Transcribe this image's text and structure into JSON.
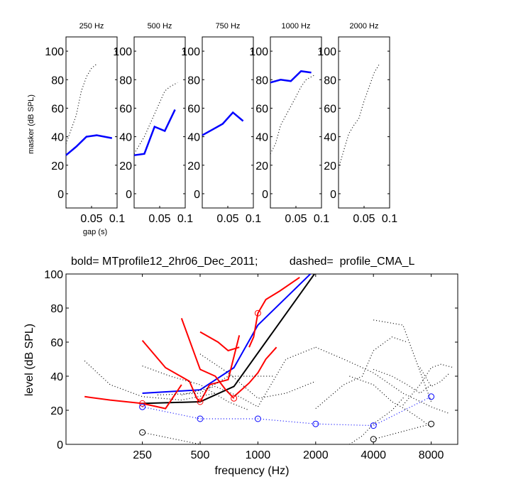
{
  "small_panels": {
    "ylabel": "masker (dB SPL)",
    "xlabel": "gap (s)",
    "xlim": [
      0,
      0.1
    ],
    "ylim": [
      -10,
      110
    ],
    "xticks": [
      "0.05",
      "0.1"
    ],
    "yticks": [
      "0",
      "20",
      "40",
      "60",
      "80",
      "100"
    ]
  },
  "bottom_title": "bold= MTprofile12_2hr06_Dec_2011;          dashed=  profile_CMA_L",
  "chart_data": [
    {
      "type": "line",
      "title": "250 Hz",
      "xlim": [
        0,
        0.1
      ],
      "ylim": [
        -10,
        110
      ],
      "series": [
        {
          "style": "bold",
          "color": "#0000ff",
          "x": [
            0.0,
            0.02,
            0.04,
            0.06,
            0.09
          ],
          "y": [
            27,
            33,
            40,
            41,
            39
          ]
        },
        {
          "style": "dotted",
          "color": "#000000",
          "x": [
            0.0,
            0.01,
            0.02,
            0.03,
            0.04,
            0.05,
            0.06
          ],
          "y": [
            35,
            45,
            55,
            72,
            82,
            88,
            91
          ]
        }
      ]
    },
    {
      "type": "line",
      "title": "500 Hz",
      "xlim": [
        0,
        0.1
      ],
      "ylim": [
        -10,
        110
      ],
      "series": [
        {
          "style": "bold",
          "color": "#0000ff",
          "x": [
            0.0,
            0.02,
            0.04,
            0.06,
            0.08
          ],
          "y": [
            27,
            28,
            47,
            44,
            59
          ]
        },
        {
          "style": "dotted",
          "color": "#000000",
          "x": [
            0.0,
            0.02,
            0.03,
            0.045,
            0.06,
            0.07,
            0.085
          ],
          "y": [
            28,
            40,
            48,
            60,
            72,
            75,
            78
          ]
        }
      ]
    },
    {
      "type": "line",
      "title": "750 Hz",
      "xlim": [
        0,
        0.1
      ],
      "ylim": [
        -10,
        110
      ],
      "series": [
        {
          "style": "bold",
          "color": "#0000ff",
          "x": [
            0.0,
            0.02,
            0.04,
            0.06,
            0.08
          ],
          "y": [
            41,
            45,
            49,
            57,
            51
          ]
        }
      ]
    },
    {
      "type": "line",
      "title": "1000 Hz",
      "xlim": [
        0,
        0.1
      ],
      "ylim": [
        -10,
        110
      ],
      "series": [
        {
          "style": "bold",
          "color": "#0000ff",
          "x": [
            0.0,
            0.02,
            0.04,
            0.06,
            0.08
          ],
          "y": [
            78,
            80,
            79,
            86,
            85
          ]
        },
        {
          "style": "dotted",
          "color": "#000000",
          "x": [
            0.0,
            0.01,
            0.02,
            0.035,
            0.05,
            0.06,
            0.07,
            0.085
          ],
          "y": [
            28,
            35,
            48,
            58,
            68,
            75,
            80,
            83
          ]
        }
      ]
    },
    {
      "type": "line",
      "title": "2000 Hz",
      "xlim": [
        0,
        0.1
      ],
      "ylim": [
        -10,
        110
      ],
      "series": [
        {
          "style": "dotted",
          "color": "#000000",
          "x": [
            0.0,
            0.01,
            0.02,
            0.03,
            0.04,
            0.05,
            0.06,
            0.07,
            0.08
          ],
          "y": [
            18,
            30,
            42,
            48,
            53,
            65,
            75,
            85,
            91
          ]
        }
      ]
    },
    {
      "type": "line",
      "xlabel": "frequency (Hz)",
      "ylabel": "level (dB SPL)",
      "xscale": "log",
      "xlim": [
        100,
        11000
      ],
      "ylim": [
        0,
        100
      ],
      "xticks": [
        250,
        500,
        1000,
        2000,
        4000,
        8000
      ],
      "xtick_labels": [
        "250",
        "500",
        "1000",
        "2000",
        "4000",
        "8000"
      ],
      "yticks": [
        0,
        20,
        40,
        60,
        80,
        100
      ],
      "ytick_labels": [
        "0",
        "20",
        "40",
        "60",
        "80",
        "100"
      ],
      "series": [
        {
          "style": "bold",
          "color": "#0000ff",
          "x": [
            250,
            500,
            750,
            1000,
            2000
          ],
          "y": [
            30,
            32,
            45,
            70,
            103
          ]
        },
        {
          "style": "bold",
          "color": "#000000",
          "x": [
            250,
            500,
            750,
            2000
          ],
          "y": [
            24,
            25,
            34,
            101
          ]
        },
        {
          "style": "bold",
          "color": "#ff0000",
          "x": [
            125,
            170,
            250,
            330,
            400
          ],
          "y": [
            28,
            26,
            24,
            21,
            35
          ]
        },
        {
          "style": "bold",
          "color": "#ff0000",
          "x": [
            250,
            330,
            440,
            480,
            500
          ],
          "y": [
            61,
            45,
            37,
            27,
            25
          ]
        },
        {
          "style": "bold",
          "color": "#ff0000",
          "x": [
            400,
            500,
            600,
            680,
            750
          ],
          "y": [
            74,
            44,
            40,
            32,
            27
          ]
        },
        {
          "style": "bold",
          "color": "#ff0000",
          "x": [
            500,
            560,
            650,
            700,
            800
          ],
          "y": [
            25,
            35,
            37,
            38,
            64
          ]
        },
        {
          "style": "bold",
          "color": "#ff0000",
          "x": [
            500,
            620,
            700,
            800
          ],
          "y": [
            66,
            60,
            55,
            57
          ]
        },
        {
          "style": "bold",
          "color": "#ff0000",
          "x": [
            750,
            900,
            1000,
            1100,
            1250
          ],
          "y": [
            28,
            36,
            42,
            50,
            57
          ]
        },
        {
          "style": "bold",
          "color": "#ff0000",
          "x": [
            900,
            950,
            1000,
            1100,
            1300,
            1650
          ],
          "y": [
            57,
            63,
            77,
            85,
            90,
            98
          ]
        },
        {
          "style": "markers",
          "color": "#ff0000",
          "x": [
            250,
            500,
            750,
            1000
          ],
          "y": [
            24,
            25,
            27,
            77
          ]
        },
        {
          "style": "dotted",
          "color": "#000000",
          "x": [
            125,
            170,
            250,
            400,
            600
          ],
          "y": [
            49,
            35,
            28,
            26,
            30
          ]
        },
        {
          "style": "dotted",
          "color": "#000000",
          "x": [
            250,
            350,
            500,
            700,
            900
          ],
          "y": [
            46,
            40,
            35,
            25,
            20
          ]
        },
        {
          "style": "dotted",
          "color": "#000000",
          "x": [
            300,
            500,
            700,
            900,
            1200
          ],
          "y": [
            29,
            30,
            40,
            40,
            40
          ]
        },
        {
          "style": "dotted",
          "color": "#000000",
          "x": [
            400,
            600,
            800,
            1000,
            1400,
            2000
          ],
          "y": [
            29,
            34,
            28,
            22,
            50,
            57
          ]
        },
        {
          "style": "dotted",
          "color": "#000000",
          "x": [
            500,
            700,
            1000,
            1400,
            2000
          ],
          "y": [
            53,
            42,
            27,
            30,
            37
          ]
        },
        {
          "style": "dotted",
          "color": "#000000",
          "x": [
            2000,
            2800,
            4000,
            5700,
            8000,
            10000
          ],
          "y": [
            57,
            50,
            42,
            30,
            22,
            18
          ]
        },
        {
          "style": "dotted",
          "color": "#000000",
          "x": [
            2000,
            2800,
            3500,
            4000,
            5000,
            6000
          ],
          "y": [
            21,
            35,
            40,
            55,
            63,
            60
          ]
        },
        {
          "style": "dotted",
          "color": "#000000",
          "x": [
            3000,
            4000,
            5000,
            6000,
            7000,
            8000
          ],
          "y": [
            40,
            35,
            25,
            20,
            15,
            10
          ]
        },
        {
          "style": "dotted",
          "color": "#000000",
          "x": [
            4000,
            5700,
            8000
          ],
          "y": [
            73,
            70,
            25
          ]
        },
        {
          "style": "dotted",
          "color": "#000000",
          "x": [
            5700,
            7000,
            8000,
            9000,
            10500
          ],
          "y": [
            23,
            35,
            45,
            47,
            45
          ]
        },
        {
          "style": "dotted",
          "color": "#000000",
          "x": [
            7000,
            8000,
            9000,
            10000
          ],
          "y": [
            45,
            34,
            37,
            42
          ]
        },
        {
          "style": "dotted",
          "color": "#000000",
          "x": [
            4000,
            5000,
            6000,
            7000,
            8000
          ],
          "y": [
            44,
            40,
            35,
            30,
            35
          ]
        },
        {
          "style": "dotted",
          "color": "#000000",
          "x": [
            3000,
            3500,
            4000,
            5000,
            5800
          ],
          "y": [
            0,
            5,
            12,
            20,
            28
          ]
        },
        {
          "style": "dotted",
          "color": "#0000ff",
          "x": [
            250,
            500,
            1000,
            2000,
            4000,
            8000
          ],
          "y": [
            22,
            15,
            15,
            12,
            11,
            28
          ]
        },
        {
          "style": "markers",
          "color": "#0000ff",
          "x": [
            250,
            500,
            1000,
            2000,
            4000,
            8000
          ],
          "y": [
            22,
            15,
            15,
            12,
            11,
            28
          ]
        },
        {
          "style": "dotted",
          "color": "#000000",
          "x": [
            250,
            500,
            1000
          ],
          "y": [
            7,
            0,
            -5
          ]
        },
        {
          "style": "dotted",
          "color": "#000000",
          "x": [
            4000,
            8000
          ],
          "y": [
            3,
            12
          ]
        },
        {
          "style": "markers",
          "color": "#000000",
          "x": [
            250,
            4000,
            8000
          ],
          "y": [
            7,
            3,
            12
          ]
        }
      ]
    }
  ]
}
